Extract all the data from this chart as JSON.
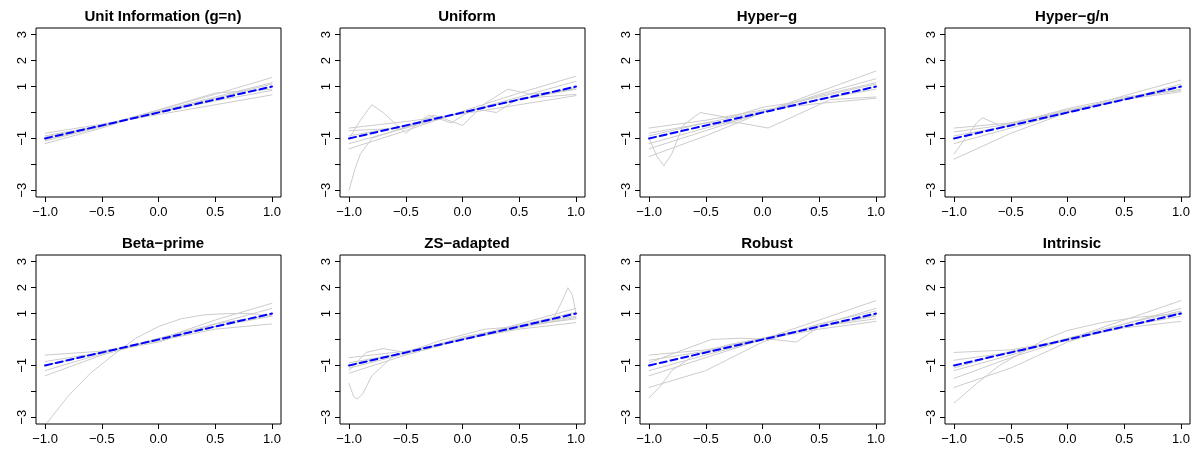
{
  "chart_data": [
    {
      "type": "line",
      "title": "Unit Information (g=n)",
      "x": [
        -1,
        -0.5,
        0,
        0.5,
        1
      ],
      "xlim": [
        -1.08,
        1.08
      ],
      "ylim": [
        -3.26,
        3.26
      ],
      "marker": "none",
      "xticks": [
        {
          "value": -1,
          "label": "−1.0"
        },
        {
          "value": -0.5,
          "label": "−0.5"
        },
        {
          "value": 0,
          "label": "0.0"
        },
        {
          "value": 0.5,
          "label": "0.5"
        },
        {
          "value": 1,
          "label": "1.0"
        }
      ],
      "yticks": [
        {
          "value": -3,
          "label": "−3"
        },
        {
          "value": -2,
          "label": null
        },
        {
          "value": -1,
          "label": "−1"
        },
        {
          "value": 0,
          "label": null
        },
        1,
        2,
        3
      ],
      "series": [
        {
          "color": "#cccccc",
          "line_style": "solid",
          "values": [
            -0.8,
            -0.45,
            -0.08,
            0.3,
            0.68
          ]
        },
        {
          "color": "#cccccc",
          "line_style": "solid",
          "values": [
            -1.2,
            -0.6,
            0.1,
            0.7,
            1.35
          ]
        },
        {
          "color": "#cccccc",
          "line_style": "solid",
          "values": [
            -0.9,
            -0.5,
            0,
            0.45,
            0.85
          ]
        },
        {
          "color": "#cccccc",
          "line_style": "solid",
          "values": [
            -1.1,
            -0.55,
            0.05,
            0.6,
            1.15
          ]
        },
        {
          "color": "#cccccc",
          "line_style": "solid",
          "values": [
            -0.95,
            -0.5,
            0.1,
            0.75,
            0.9
          ]
        },
        {
          "color": "#cccccc",
          "line_style": "solid",
          "values": [
            -1.05,
            -0.52,
            0.02,
            0.55,
            1.1
          ]
        },
        {
          "color": "#0000ff",
          "line_style": "dashed",
          "x": [
            -1,
            1
          ],
          "values": [
            -1,
            1
          ]
        }
      ]
    },
    {
      "type": "line",
      "title": "Uniform",
      "x": [
        -1,
        -0.5,
        0,
        0.5,
        1
      ],
      "xlim": [
        -1.08,
        1.08
      ],
      "ylim": [
        -3.26,
        3.26
      ],
      "marker": "none",
      "xticks": [
        {
          "value": -1,
          "label": "−1.0"
        },
        {
          "value": -0.5,
          "label": "−0.5"
        },
        {
          "value": 0,
          "label": "0.0"
        },
        {
          "value": 0.5,
          "label": "0.5"
        },
        {
          "value": 1,
          "label": "1.0"
        }
      ],
      "yticks": [
        {
          "value": -3,
          "label": "−3"
        },
        {
          "value": -2,
          "label": null
        },
        {
          "value": -1,
          "label": "−1"
        },
        {
          "value": 0,
          "label": null
        },
        1,
        2,
        3
      ],
      "series": [
        {
          "color": "#cccccc",
          "line_style": "solid",
          "x": [
            -1,
            -0.9,
            -0.8,
            -0.7,
            -0.5,
            -0.3,
            -0.1,
            0.1,
            0.3,
            0.5,
            0.7,
            1
          ],
          "values": [
            -1.0,
            -0.3,
            0.3,
            0.0,
            -0.8,
            -0.1,
            -0.4,
            0.15,
            0.0,
            0.55,
            0.6,
            0.7
          ]
        },
        {
          "color": "#cccccc",
          "line_style": "solid",
          "x": [
            -1,
            -0.95,
            -0.9,
            -0.8,
            -0.5,
            0,
            0.5,
            1
          ],
          "values": [
            -3.0,
            -2.2,
            -1.6,
            -1.0,
            -0.55,
            0,
            0.5,
            0.9
          ]
        },
        {
          "color": "#cccccc",
          "line_style": "solid",
          "x": [
            -1,
            -0.5,
            -0.25,
            0,
            0.2,
            0.4,
            0.6,
            1
          ],
          "values": [
            -0.7,
            -0.6,
            -0.1,
            -0.5,
            0.35,
            0.9,
            0.7,
            0.9
          ]
        },
        {
          "color": "#cccccc",
          "line_style": "solid",
          "values": [
            -0.6,
            -0.35,
            -0.05,
            0.3,
            0.65
          ]
        },
        {
          "color": "#cccccc",
          "line_style": "solid",
          "values": [
            -1.4,
            -0.7,
            0.05,
            0.75,
            1.4
          ]
        },
        {
          "color": "#cccccc",
          "line_style": "solid",
          "values": [
            -0.9,
            -0.5,
            0,
            0.5,
            0.95
          ]
        },
        {
          "color": "#cccccc",
          "line_style": "solid",
          "values": [
            -1.2,
            -0.6,
            0,
            0.6,
            1.2
          ]
        },
        {
          "color": "#0000ff",
          "line_style": "dashed",
          "x": [
            -1,
            1
          ],
          "values": [
            -1,
            1
          ]
        }
      ]
    },
    {
      "type": "line",
      "title": "Hyper−g",
      "x": [
        -1,
        -0.5,
        0,
        0.5,
        1
      ],
      "xlim": [
        -1.08,
        1.08
      ],
      "ylim": [
        -3.26,
        3.26
      ],
      "marker": "none",
      "xticks": [
        {
          "value": -1,
          "label": "−1.0"
        },
        {
          "value": -0.5,
          "label": "−0.5"
        },
        {
          "value": 0,
          "label": "0.0"
        },
        {
          "value": 0.5,
          "label": "0.5"
        },
        {
          "value": 1,
          "label": "1.0"
        }
      ],
      "yticks": [
        {
          "value": -3,
          "label": "−3"
        },
        {
          "value": -2,
          "label": null
        },
        {
          "value": -1,
          "label": "−1"
        },
        {
          "value": 0,
          "label": null
        },
        1,
        2,
        3
      ],
      "series": [
        {
          "color": "#cccccc",
          "line_style": "solid",
          "x": [
            -1,
            -0.93,
            -0.87,
            -0.8,
            -0.7,
            -0.55,
            -0.3,
            0,
            0.3,
            0.6,
            1
          ],
          "values": [
            -1.0,
            -1.7,
            -2.05,
            -1.6,
            -0.5,
            0,
            -0.2,
            0.2,
            0.4,
            0.7,
            1.1
          ]
        },
        {
          "color": "#cccccc",
          "line_style": "solid",
          "x": [
            -1,
            -0.5,
            -0.2,
            0.05,
            0.3,
            0.6,
            1
          ],
          "values": [
            -0.9,
            -0.4,
            -0.4,
            -0.6,
            -0.1,
            0.5,
            0.6
          ]
        },
        {
          "color": "#cccccc",
          "line_style": "solid",
          "values": [
            -1.7,
            -0.9,
            0,
            0.8,
            1.6
          ]
        },
        {
          "color": "#cccccc",
          "line_style": "solid",
          "values": [
            -0.6,
            -0.3,
            0.1,
            0.35,
            0.55
          ]
        },
        {
          "color": "#cccccc",
          "line_style": "solid",
          "values": [
            -1.4,
            -0.7,
            0,
            0.7,
            1.3
          ]
        },
        {
          "color": "#cccccc",
          "line_style": "solid",
          "values": [
            -0.8,
            -0.4,
            0.05,
            0.5,
            0.9
          ]
        },
        {
          "color": "#cccccc",
          "line_style": "solid",
          "values": [
            -1.2,
            -0.6,
            0,
            0.65,
            1.15
          ]
        },
        {
          "color": "#0000ff",
          "line_style": "dashed",
          "x": [
            -1,
            1
          ],
          "values": [
            -1,
            1
          ]
        }
      ]
    },
    {
      "type": "line",
      "title": "Hyper−g/n",
      "x": [
        -1,
        -0.5,
        0,
        0.5,
        1
      ],
      "xlim": [
        -1.08,
        1.08
      ],
      "ylim": [
        -3.26,
        3.26
      ],
      "marker": "none",
      "xticks": [
        {
          "value": -1,
          "label": "−1.0"
        },
        {
          "value": -0.5,
          "label": "−0.5"
        },
        {
          "value": 0,
          "label": "0.0"
        },
        {
          "value": 0.5,
          "label": "0.5"
        },
        {
          "value": 1,
          "label": "1.0"
        }
      ],
      "yticks": [
        {
          "value": -3,
          "label": "−3"
        },
        {
          "value": -2,
          "label": null
        },
        {
          "value": -1,
          "label": "−1"
        },
        {
          "value": 0,
          "label": null
        },
        1,
        2,
        3
      ],
      "series": [
        {
          "color": "#cccccc",
          "line_style": "solid",
          "x": [
            -1,
            -0.9,
            -0.8,
            -0.75,
            -0.6,
            -0.3,
            0,
            0.5,
            1
          ],
          "values": [
            -1.6,
            -1.0,
            -0.4,
            -0.2,
            -0.5,
            -0.2,
            0.1,
            0.5,
            0.9
          ]
        },
        {
          "color": "#cccccc",
          "line_style": "solid",
          "values": [
            -0.6,
            -0.4,
            0.05,
            0.5,
            0.8
          ]
        },
        {
          "color": "#cccccc",
          "line_style": "solid",
          "values": [
            -1.8,
            -0.8,
            0,
            0.65,
            1.25
          ]
        },
        {
          "color": "#cccccc",
          "line_style": "solid",
          "values": [
            -0.9,
            -0.5,
            0.05,
            0.55,
            1.0
          ]
        },
        {
          "color": "#cccccc",
          "line_style": "solid",
          "values": [
            -1.2,
            -0.6,
            0,
            0.5,
            1.1
          ]
        },
        {
          "color": "#cccccc",
          "line_style": "solid",
          "values": [
            -0.75,
            -0.45,
            0.15,
            0.6,
            0.85
          ]
        },
        {
          "color": "#0000ff",
          "line_style": "dashed",
          "x": [
            -1,
            1
          ],
          "values": [
            -1,
            1
          ]
        }
      ]
    },
    {
      "type": "line",
      "title": "Beta−prime",
      "x": [
        -1,
        -0.5,
        0,
        0.5,
        1
      ],
      "xlim": [
        -1.08,
        1.08
      ],
      "ylim": [
        -3.26,
        3.26
      ],
      "marker": "none",
      "xticks": [
        {
          "value": -1,
          "label": "−1.0"
        },
        {
          "value": -0.5,
          "label": "−0.5"
        },
        {
          "value": 0,
          "label": "0.0"
        },
        {
          "value": 0.5,
          "label": "0.5"
        },
        {
          "value": 1,
          "label": "1.0"
        }
      ],
      "yticks": [
        {
          "value": -3,
          "label": "−3"
        },
        {
          "value": -2,
          "label": null
        },
        {
          "value": -1,
          "label": "−1"
        },
        {
          "value": 0,
          "label": null
        },
        1,
        2,
        3
      ],
      "series": [
        {
          "color": "#cccccc",
          "line_style": "solid",
          "x": [
            -0.98,
            -0.8,
            -0.6,
            -0.4,
            -0.2,
            0,
            0.2,
            0.4,
            0.6,
            0.8,
            1
          ],
          "values": [
            -3.2,
            -2.2,
            -1.3,
            -0.6,
            0.05,
            0.5,
            0.8,
            0.95,
            1.0,
            1.0,
            0.9
          ]
        },
        {
          "color": "#cccccc",
          "line_style": "solid",
          "values": [
            -0.6,
            -0.45,
            -0.05,
            0.4,
            0.6
          ]
        },
        {
          "color": "#cccccc",
          "line_style": "solid",
          "values": [
            -1.4,
            -0.6,
            0,
            0.75,
            1.4
          ]
        },
        {
          "color": "#cccccc",
          "line_style": "solid",
          "values": [
            -0.85,
            -0.5,
            0,
            0.5,
            0.9
          ]
        },
        {
          "color": "#cccccc",
          "line_style": "solid",
          "values": [
            -1.2,
            -0.55,
            0.05,
            0.6,
            1.2
          ]
        },
        {
          "color": "#cccccc",
          "line_style": "solid",
          "values": [
            -1.0,
            -0.5,
            -0.1,
            0.6,
            0.95
          ]
        },
        {
          "color": "#0000ff",
          "line_style": "dashed",
          "x": [
            -1,
            1
          ],
          "values": [
            -1,
            1
          ]
        }
      ]
    },
    {
      "type": "line",
      "title": "ZS−adapted",
      "x": [
        -1,
        -0.5,
        0,
        0.5,
        1
      ],
      "xlim": [
        -1.08,
        1.08
      ],
      "ylim": [
        -3.26,
        3.26
      ],
      "marker": "none",
      "xticks": [
        {
          "value": -1,
          "label": "−1.0"
        },
        {
          "value": -0.5,
          "label": "−0.5"
        },
        {
          "value": 0,
          "label": "0.0"
        },
        {
          "value": 0.5,
          "label": "0.5"
        },
        {
          "value": 1,
          "label": "1.0"
        }
      ],
      "yticks": [
        {
          "value": -3,
          "label": "−3"
        },
        {
          "value": -2,
          "label": null
        },
        {
          "value": -1,
          "label": "−1"
        },
        {
          "value": 0,
          "label": null
        },
        1,
        2,
        3
      ],
      "series": [
        {
          "color": "#cccccc",
          "line_style": "solid",
          "x": [
            -1,
            -0.96,
            -0.93,
            -0.88,
            -0.8,
            -0.6,
            -0.3,
            0,
            0.5,
            1
          ],
          "values": [
            -1.7,
            -2.2,
            -2.3,
            -2.1,
            -1.4,
            -0.6,
            -0.3,
            0.1,
            0.5,
            0.9
          ]
        },
        {
          "color": "#cccccc",
          "line_style": "solid",
          "x": [
            -1,
            -0.5,
            0,
            0.5,
            0.8,
            0.88,
            0.93,
            0.97,
            1
          ],
          "values": [
            -1.0,
            -0.5,
            0,
            0.5,
            0.8,
            1.5,
            2.0,
            1.7,
            1.0
          ]
        },
        {
          "color": "#cccccc",
          "line_style": "solid",
          "x": [
            -1,
            -0.85,
            -0.7,
            -0.5,
            -0.2,
            0.2,
            0.5,
            1
          ],
          "values": [
            -1.2,
            -0.5,
            -0.35,
            -0.5,
            -0.05,
            0.4,
            0.5,
            0.8
          ]
        },
        {
          "color": "#cccccc",
          "line_style": "solid",
          "values": [
            -0.7,
            -0.45,
            0,
            0.4,
            0.65
          ]
        },
        {
          "color": "#cccccc",
          "line_style": "solid",
          "values": [
            -1.3,
            -0.6,
            0,
            0.6,
            1.2
          ]
        },
        {
          "color": "#cccccc",
          "line_style": "solid",
          "values": [
            -0.9,
            -0.5,
            0,
            0.45,
            0.85
          ]
        },
        {
          "color": "#cccccc",
          "line_style": "solid",
          "values": [
            -1.1,
            -0.55,
            0.05,
            0.55,
            1.05
          ]
        },
        {
          "color": "#0000ff",
          "line_style": "dashed",
          "x": [
            -1,
            1
          ],
          "values": [
            -1,
            1
          ]
        }
      ]
    },
    {
      "type": "line",
      "title": "Robust",
      "x": [
        -1,
        -0.5,
        0,
        0.5,
        1
      ],
      "xlim": [
        -1.08,
        1.08
      ],
      "ylim": [
        -3.26,
        3.26
      ],
      "marker": "none",
      "xticks": [
        {
          "value": -1,
          "label": "−1.0"
        },
        {
          "value": -0.5,
          "label": "−0.5"
        },
        {
          "value": 0,
          "label": "0.0"
        },
        {
          "value": 0.5,
          "label": "0.5"
        },
        {
          "value": 1,
          "label": "1.0"
        }
      ],
      "yticks": [
        {
          "value": -3,
          "label": "−3"
        },
        {
          "value": -2,
          "label": null
        },
        {
          "value": -1,
          "label": "−1"
        },
        {
          "value": 0,
          "label": null
        },
        1,
        2,
        3
      ],
      "series": [
        {
          "color": "#cccccc",
          "line_style": "solid",
          "x": [
            -1,
            -0.9,
            -0.8,
            -0.6,
            -0.3,
            0,
            0.5,
            1
          ],
          "values": [
            -2.25,
            -1.8,
            -1.2,
            -0.6,
            -0.2,
            0.05,
            0.5,
            0.9
          ]
        },
        {
          "color": "#cccccc",
          "line_style": "solid",
          "values": [
            -1.85,
            -1.2,
            -0.1,
            0.6,
            1.1
          ]
        },
        {
          "color": "#cccccc",
          "line_style": "solid",
          "x": [
            -1,
            -0.7,
            -0.45,
            -0.2,
            0.1,
            0.3,
            0.5,
            1
          ],
          "values": [
            -0.9,
            -0.4,
            0,
            0.05,
            0.0,
            -0.1,
            0.5,
            0.8
          ]
        },
        {
          "color": "#cccccc",
          "line_style": "solid",
          "values": [
            -0.6,
            -0.4,
            0,
            0.4,
            0.7
          ]
        },
        {
          "color": "#cccccc",
          "line_style": "solid",
          "values": [
            -1.4,
            -0.7,
            0,
            0.75,
            1.5
          ]
        },
        {
          "color": "#cccccc",
          "line_style": "solid",
          "values": [
            -0.8,
            -0.45,
            0.05,
            0.5,
            0.95
          ]
        },
        {
          "color": "#cccccc",
          "line_style": "solid",
          "values": [
            -1.2,
            -0.6,
            0,
            0.55,
            1.2
          ]
        },
        {
          "color": "#0000ff",
          "line_style": "dashed",
          "x": [
            -1,
            1
          ],
          "values": [
            -1,
            1
          ]
        }
      ]
    },
    {
      "type": "line",
      "title": "Intrinsic",
      "x": [
        -1,
        -0.5,
        0,
        0.5,
        1
      ],
      "xlim": [
        -1.08,
        1.08
      ],
      "ylim": [
        -3.26,
        3.26
      ],
      "marker": "none",
      "xticks": [
        {
          "value": -1,
          "label": "−1.0"
        },
        {
          "value": -0.5,
          "label": "−0.5"
        },
        {
          "value": 0,
          "label": "0.0"
        },
        {
          "value": 0.5,
          "label": "0.5"
        },
        {
          "value": 1,
          "label": "1.0"
        }
      ],
      "yticks": [
        {
          "value": -3,
          "label": "−3"
        },
        {
          "value": -2,
          "label": null
        },
        {
          "value": -1,
          "label": "−1"
        },
        {
          "value": 0,
          "label": null
        },
        1,
        2,
        3
      ],
      "series": [
        {
          "color": "#cccccc",
          "line_style": "solid",
          "x": [
            -1,
            -0.8,
            -0.6,
            -0.4,
            -0.2,
            0,
            0.3,
            0.6,
            1
          ],
          "values": [
            -2.45,
            -1.7,
            -1.0,
            -0.5,
            0.0,
            0.35,
            0.65,
            0.85,
            1.0
          ]
        },
        {
          "color": "#cccccc",
          "line_style": "solid",
          "values": [
            -1.85,
            -1.1,
            -0.1,
            0.6,
            1.1
          ]
        },
        {
          "color": "#cccccc",
          "line_style": "solid",
          "values": [
            -0.5,
            -0.4,
            0,
            0.45,
            0.7
          ]
        },
        {
          "color": "#cccccc",
          "line_style": "solid",
          "values": [
            -1.5,
            -0.7,
            0,
            0.75,
            1.5
          ]
        },
        {
          "color": "#cccccc",
          "line_style": "solid",
          "values": [
            -0.8,
            -0.5,
            0,
            0.5,
            0.9
          ]
        },
        {
          "color": "#cccccc",
          "line_style": "solid",
          "values": [
            -1.2,
            -0.6,
            0.05,
            0.6,
            1.2
          ]
        },
        {
          "color": "#cccccc",
          "line_style": "solid",
          "values": [
            -1.1,
            -0.45,
            -0.05,
            0.5,
            1.05
          ]
        },
        {
          "color": "#0000ff",
          "line_style": "dashed",
          "x": [
            -1,
            1
          ],
          "values": [
            -1,
            1
          ]
        }
      ]
    }
  ]
}
